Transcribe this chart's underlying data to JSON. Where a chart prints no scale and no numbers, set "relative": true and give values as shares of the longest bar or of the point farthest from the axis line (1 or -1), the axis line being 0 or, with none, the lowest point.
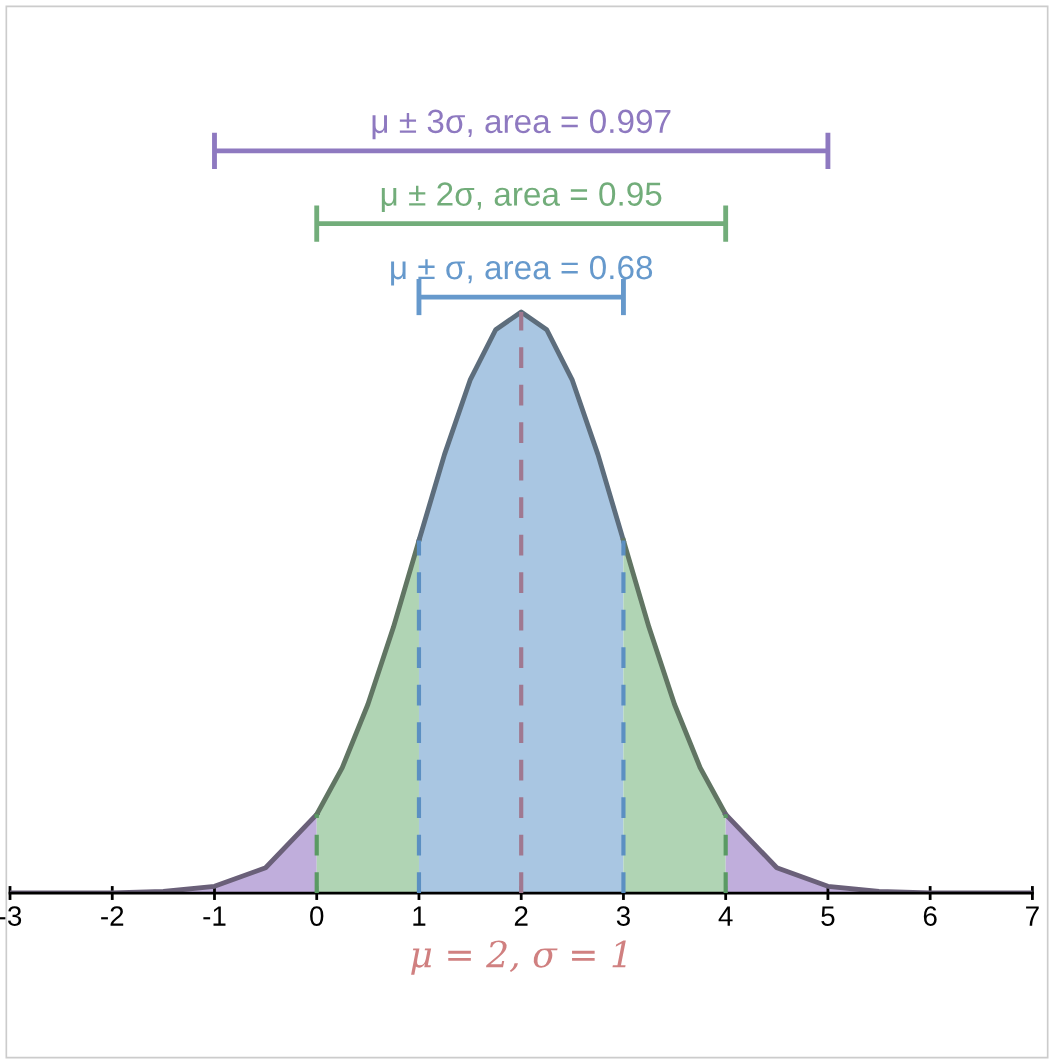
{
  "chart_data": {
    "type": "area",
    "relative": true,
    "xlabel": "μ = 2, σ = 1",
    "xlim": [
      -3,
      7
    ],
    "xticks": [
      -3,
      -2,
      -1,
      0,
      1,
      2,
      3,
      4,
      5,
      6,
      7
    ],
    "grid": false,
    "legend": false,
    "series": [
      {
        "color": "#c0aedc",
        "x": [
          -3,
          -2,
          -1.5,
          -1,
          -0.5,
          0
        ],
        "values": [
          0,
          0,
          0.002,
          0.009,
          0.034,
          0.106
        ]
      },
      {
        "color": "#b0d4b4",
        "x": [
          0,
          0.25,
          0.5,
          0.75,
          1
        ],
        "values": [
          0.106,
          0.169,
          0.254,
          0.358,
          0.475
        ]
      },
      {
        "color": "#a9c6e2",
        "x": [
          1,
          1.25,
          1.5,
          1.75,
          2,
          2.25,
          2.5,
          2.75,
          3
        ],
        "values": [
          0.475,
          0.591,
          0.691,
          0.759,
          0.783,
          0.759,
          0.691,
          0.591,
          0.475
        ]
      },
      {
        "color": "#b0d4b4",
        "x": [
          3,
          3.25,
          3.5,
          3.75,
          4
        ],
        "values": [
          0.475,
          0.358,
          0.254,
          0.169,
          0.106
        ]
      },
      {
        "color": "#c0aedc",
        "x": [
          4,
          4.5,
          5,
          5.5,
          6,
          7
        ],
        "values": [
          0.106,
          0.034,
          0.009,
          0.002,
          0,
          0
        ]
      },
      {
        "type": "line",
        "line_style": "dashed",
        "color": "#5b8fc2",
        "x": [
          1,
          1
        ],
        "values": [
          0,
          0.475
        ]
      },
      {
        "type": "line",
        "line_style": "dashed",
        "color": "#5b8fc2",
        "x": [
          3,
          3
        ],
        "values": [
          0,
          0.475
        ]
      },
      {
        "type": "line",
        "line_style": "dashed",
        "color": "#5a9a63",
        "x": [
          0,
          0
        ],
        "values": [
          0,
          0.106
        ]
      },
      {
        "type": "line",
        "line_style": "dashed",
        "color": "#5a9a63",
        "x": [
          4,
          4
        ],
        "values": [
          0,
          0.106
        ]
      },
      {
        "type": "line",
        "line_style": "dashed",
        "color": "#a07890",
        "x": [
          2,
          2
        ],
        "values": [
          0,
          0.783
        ]
      },
      {
        "type": "line",
        "name": "μ ± σ, area = 0.68",
        "color": "#6699cc",
        "x": [
          1,
          3
        ],
        "values": [
          0.803,
          0.803
        ]
      },
      {
        "type": "line",
        "name": "μ ± 2σ, area = 0.95",
        "color": "#72ad7a",
        "x": [
          0,
          4
        ],
        "values": [
          0.902,
          0.902
        ]
      },
      {
        "type": "line",
        "name": "μ ± 3σ, area = 0.997",
        "color": "#8e79c0",
        "x": [
          -1,
          5
        ],
        "values": [
          1,
          1
        ]
      }
    ]
  }
}
